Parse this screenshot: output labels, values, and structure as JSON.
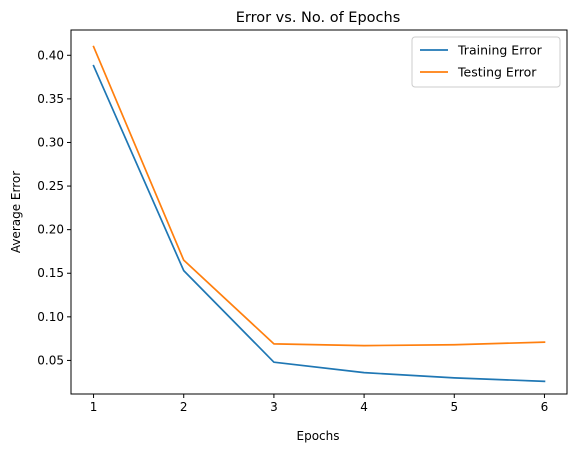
{
  "chart_data": {
    "type": "line",
    "title": "Error vs. No. of Epochs",
    "xlabel": "Epochs",
    "ylabel": "Average Error",
    "x": [
      1,
      2,
      3,
      4,
      5,
      6
    ],
    "xlim": [
      0.75,
      6.25
    ],
    "ylim": [
      0.0115,
      0.429
    ],
    "xticks": [
      "1",
      "2",
      "3",
      "4",
      "5",
      "6"
    ],
    "yticks": [
      "0.05",
      "0.10",
      "0.15",
      "0.20",
      "0.25",
      "0.30",
      "0.35",
      "0.40"
    ],
    "grid": false,
    "legend_position": "top-right",
    "series": [
      {
        "name": "Training Error",
        "color": "#1f77b4",
        "values": [
          0.388,
          0.153,
          0.048,
          0.036,
          0.03,
          0.026
        ]
      },
      {
        "name": "Testing Error",
        "color": "#ff7f0e",
        "values": [
          0.41,
          0.165,
          0.069,
          0.067,
          0.068,
          0.071
        ]
      }
    ]
  }
}
